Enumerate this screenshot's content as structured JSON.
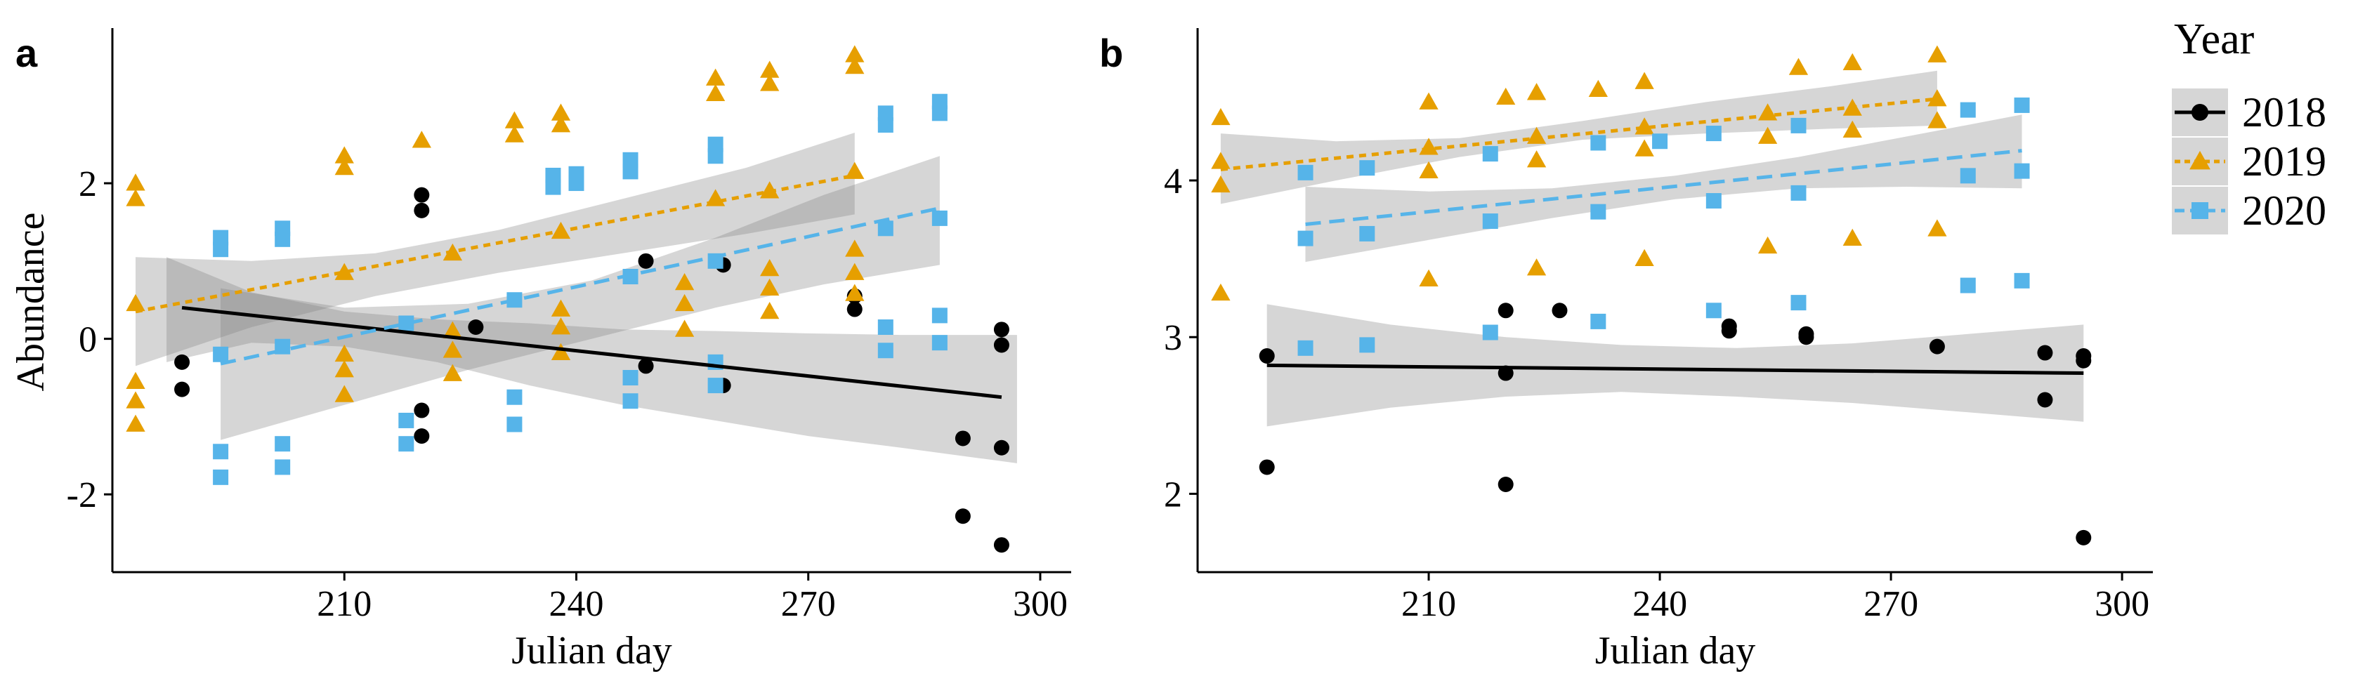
{
  "legend": {
    "title": "Year",
    "entries": [
      {
        "label": "2018",
        "color": "#000000",
        "marker": "circle",
        "line": "solid"
      },
      {
        "label": "2019",
        "color": "#E69F00",
        "marker": "triangle",
        "line": "dotted"
      },
      {
        "label": "2020",
        "color": "#56B4E9",
        "marker": "square",
        "line": "dashed"
      }
    ]
  },
  "chart_data": [
    {
      "panel_label": "a",
      "type": "scatter",
      "title": "",
      "xlabel": "Julian day",
      "ylabel": "Abundance",
      "xlim": [
        180,
        304
      ],
      "ylim": [
        -3,
        3.95
      ],
      "xticks": [
        210,
        240,
        270,
        300
      ],
      "yticks": [
        -2,
        0,
        2
      ],
      "ytick_labels": [
        "-2",
        "0",
        "2"
      ],
      "grid": false,
      "series": [
        {
          "name": "2018",
          "points": [
            [
              189,
              -0.3
            ],
            [
              189,
              -0.65
            ],
            [
              220,
              1.85
            ],
            [
              220,
              1.65
            ],
            [
              220,
              -0.92
            ],
            [
              220,
              -1.25
            ],
            [
              227,
              0.15
            ],
            [
              249,
              -0.35
            ],
            [
              249,
              1.0
            ],
            [
              259,
              0.95
            ],
            [
              259,
              -0.6
            ],
            [
              276,
              0.55
            ],
            [
              276,
              0.38
            ],
            [
              290,
              -1.28
            ],
            [
              290,
              -2.28
            ],
            [
              295,
              0.12
            ],
            [
              295,
              -0.08
            ],
            [
              295,
              -1.4
            ],
            [
              295,
              -2.65
            ]
          ],
          "fit": {
            "x": [
              189,
              295
            ],
            "y": [
              0.4,
              -0.75
            ]
          },
          "ci": {
            "x": [
              187,
              198,
              210,
              222,
              234,
              246,
              258,
              270,
              282,
              297
            ],
            "lower": [
              -0.3,
              -0.05,
              -0.1,
              -0.3,
              -0.6,
              -0.85,
              -1.05,
              -1.25,
              -1.4,
              -1.6
            ],
            "upper": [
              1.05,
              0.6,
              0.35,
              0.25,
              0.2,
              0.12,
              0.1,
              0.07,
              0.05,
              0.05
            ]
          }
        },
        {
          "name": "2019",
          "points": [
            [
              183,
              2.0
            ],
            [
              183,
              1.8
            ],
            [
              183,
              0.45
            ],
            [
              183,
              -0.55
            ],
            [
              183,
              -0.8
            ],
            [
              183,
              -1.1
            ],
            [
              210,
              2.35
            ],
            [
              210,
              2.2
            ],
            [
              210,
              0.85
            ],
            [
              210,
              -0.2
            ],
            [
              210,
              -0.4
            ],
            [
              210,
              -0.72
            ],
            [
              220,
              2.55
            ],
            [
              224,
              1.1
            ],
            [
              224,
              0.1
            ],
            [
              224,
              -0.15
            ],
            [
              224,
              -0.45
            ],
            [
              232,
              2.8
            ],
            [
              232,
              2.62
            ],
            [
              238,
              2.9
            ],
            [
              238,
              2.75
            ],
            [
              238,
              1.38
            ],
            [
              238,
              0.38
            ],
            [
              238,
              0.15
            ],
            [
              238,
              -0.18
            ],
            [
              254,
              0.72
            ],
            [
              254,
              0.45
            ],
            [
              254,
              0.12
            ],
            [
              258,
              3.35
            ],
            [
              258,
              3.15
            ],
            [
              258,
              1.8
            ],
            [
              265,
              3.45
            ],
            [
              265,
              3.28
            ],
            [
              265,
              1.9
            ],
            [
              265,
              0.9
            ],
            [
              265,
              0.65
            ],
            [
              265,
              0.35
            ],
            [
              276,
              3.65
            ],
            [
              276,
              3.5
            ],
            [
              276,
              2.15
            ],
            [
              276,
              1.15
            ],
            [
              276,
              0.85
            ],
            [
              276,
              0.58
            ]
          ],
          "fit": {
            "x": [
              183,
              276
            ],
            "y": [
              0.35,
              2.1
            ]
          },
          "ci": {
            "x": [
              183,
              198,
              214,
              230,
              246,
              262,
              276
            ],
            "lower": [
              -0.35,
              0.15,
              0.55,
              0.85,
              1.1,
              1.35,
              1.6
            ],
            "upper": [
              1.05,
              1.0,
              1.1,
              1.4,
              1.8,
              2.2,
              2.65
            ]
          }
        },
        {
          "name": "2020",
          "points": [
            [
              194,
              1.3
            ],
            [
              194,
              1.15
            ],
            [
              194,
              -0.2
            ],
            [
              194,
              -1.45
            ],
            [
              194,
              -1.78
            ],
            [
              202,
              1.42
            ],
            [
              202,
              1.28
            ],
            [
              202,
              -0.1
            ],
            [
              202,
              -1.35
            ],
            [
              202,
              -1.65
            ],
            [
              218,
              0.2
            ],
            [
              218,
              -1.05
            ],
            [
              218,
              -1.35
            ],
            [
              232,
              0.5
            ],
            [
              232,
              -0.75
            ],
            [
              232,
              -1.1
            ],
            [
              237,
              2.1
            ],
            [
              237,
              1.95
            ],
            [
              240,
              2.12
            ],
            [
              240,
              2.0
            ],
            [
              247,
              2.3
            ],
            [
              247,
              2.15
            ],
            [
              247,
              0.8
            ],
            [
              247,
              -0.5
            ],
            [
              247,
              -0.8
            ],
            [
              258,
              2.5
            ],
            [
              258,
              2.35
            ],
            [
              258,
              1.0
            ],
            [
              258,
              -0.3
            ],
            [
              258,
              -0.6
            ],
            [
              280,
              2.9
            ],
            [
              280,
              2.75
            ],
            [
              280,
              1.42
            ],
            [
              280,
              0.15
            ],
            [
              280,
              -0.15
            ],
            [
              287,
              3.05
            ],
            [
              287,
              2.9
            ],
            [
              287,
              1.55
            ],
            [
              287,
              0.3
            ],
            [
              287,
              -0.05
            ]
          ],
          "fit": {
            "x": [
              194,
              287
            ],
            "y": [
              -0.32,
              1.68
            ]
          },
          "ci": {
            "x": [
              194,
              210,
              226,
              242,
              258,
              272,
              287
            ],
            "lower": [
              -1.3,
              -0.85,
              -0.4,
              0.0,
              0.4,
              0.7,
              0.95
            ],
            "upper": [
              0.65,
              0.4,
              0.45,
              0.75,
              1.3,
              1.85,
              2.35
            ]
          }
        }
      ]
    },
    {
      "panel_label": "b",
      "type": "scatter",
      "title": "",
      "xlabel": "Julian day",
      "ylabel": "",
      "xlim": [
        180,
        304
      ],
      "ylim": [
        1.5,
        4.95
      ],
      "xticks": [
        210,
        240,
        270,
        300
      ],
      "yticks": [
        2,
        3,
        4
      ],
      "ytick_labels": [
        "2",
        "3",
        "4"
      ],
      "grid": false,
      "series": [
        {
          "name": "2018",
          "points": [
            [
              189,
              2.88
            ],
            [
              189,
              2.17
            ],
            [
              220,
              3.17
            ],
            [
              220,
              2.77
            ],
            [
              220,
              2.06
            ],
            [
              227,
              3.17
            ],
            [
              249,
              3.07
            ],
            [
              249,
              3.04
            ],
            [
              259,
              3.02
            ],
            [
              259,
              3.0
            ],
            [
              276,
              2.94
            ],
            [
              290,
              2.9
            ],
            [
              290,
              2.6
            ],
            [
              295,
              2.88
            ],
            [
              295,
              2.85
            ],
            [
              295,
              1.72
            ]
          ],
          "fit": {
            "x": [
              189,
              295
            ],
            "y": [
              2.82,
              2.77
            ]
          },
          "ci": {
            "x": [
              189,
              205,
              220,
              235,
              250,
              265,
              280,
              295
            ],
            "lower": [
              2.43,
              2.55,
              2.62,
              2.65,
              2.62,
              2.58,
              2.52,
              2.46
            ],
            "upper": [
              3.21,
              3.08,
              3.0,
              2.95,
              2.93,
              2.96,
              3.02,
              3.08
            ]
          }
        },
        {
          "name": "2019",
          "points": [
            [
              183,
              4.4
            ],
            [
              183,
              4.12
            ],
            [
              183,
              3.97
            ],
            [
              183,
              3.28
            ],
            [
              210,
              4.5
            ],
            [
              210,
              4.21
            ],
            [
              210,
              4.06
            ],
            [
              210,
              3.37
            ],
            [
              220,
              4.53
            ],
            [
              224,
              4.56
            ],
            [
              224,
              4.28
            ],
            [
              224,
              4.13
            ],
            [
              224,
              3.44
            ],
            [
              232,
              4.58
            ],
            [
              238,
              4.63
            ],
            [
              238,
              4.34
            ],
            [
              238,
              4.2
            ],
            [
              238,
              3.5
            ],
            [
              254,
              4.43
            ],
            [
              254,
              4.28
            ],
            [
              254,
              3.58
            ],
            [
              258,
              4.72
            ],
            [
              265,
              4.75
            ],
            [
              265,
              4.46
            ],
            [
              265,
              4.32
            ],
            [
              265,
              3.63
            ],
            [
              276,
              4.8
            ],
            [
              276,
              4.52
            ],
            [
              276,
              4.38
            ],
            [
              276,
              3.69
            ]
          ],
          "fit": {
            "x": [
              183,
              276
            ],
            "y": [
              4.07,
              4.52
            ]
          },
          "ci": {
            "x": [
              183,
              198,
              214,
              230,
              246,
              262,
              276
            ],
            "lower": [
              3.85,
              4.0,
              4.15,
              4.26,
              4.3,
              4.33,
              4.35
            ],
            "upper": [
              4.3,
              4.25,
              4.27,
              4.38,
              4.5,
              4.6,
              4.7
            ]
          }
        },
        {
          "name": "2020",
          "points": [
            [
              194,
              4.05
            ],
            [
              194,
              3.63
            ],
            [
              194,
              2.93
            ],
            [
              202,
              4.08
            ],
            [
              202,
              3.66
            ],
            [
              202,
              2.95
            ],
            [
              218,
              4.17
            ],
            [
              218,
              3.74
            ],
            [
              218,
              3.03
            ],
            [
              232,
              4.24
            ],
            [
              232,
              3.8
            ],
            [
              232,
              3.1
            ],
            [
              240,
              4.25
            ],
            [
              247,
              4.3
            ],
            [
              247,
              3.87
            ],
            [
              247,
              3.17
            ],
            [
              258,
              4.35
            ],
            [
              258,
              3.92
            ],
            [
              258,
              3.22
            ],
            [
              280,
              4.45
            ],
            [
              280,
              4.03
            ],
            [
              280,
              3.33
            ],
            [
              287,
              4.48
            ],
            [
              287,
              4.06
            ],
            [
              287,
              3.36
            ]
          ],
          "fit": {
            "x": [
              194,
              287
            ],
            "y": [
              3.72,
              4.19
            ]
          },
          "ci": {
            "x": [
              194,
              210,
              226,
              242,
              258,
              272,
              287
            ],
            "lower": [
              3.48,
              3.62,
              3.76,
              3.88,
              3.95,
              3.96,
              3.95
            ],
            "upper": [
              3.96,
              3.93,
              3.95,
              4.03,
              4.15,
              4.28,
              4.42
            ]
          }
        }
      ]
    }
  ]
}
